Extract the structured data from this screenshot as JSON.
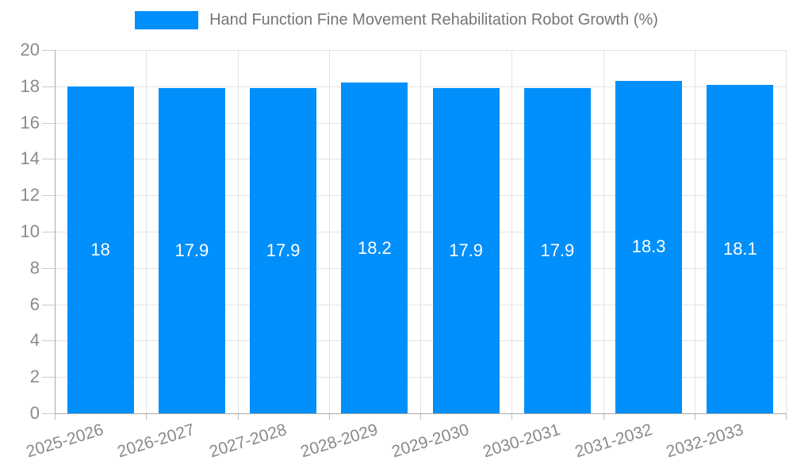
{
  "legend": {
    "label": "Hand Function Fine Movement Rehabilitation Robot Growth (%)"
  },
  "chart_data": {
    "type": "bar",
    "title": "Hand Function Fine Movement Rehabilitation Robot Growth (%)",
    "categories": [
      "2025-2026",
      "2026-2027",
      "2027-2028",
      "2028-2029",
      "2029-2030",
      "2030-2031",
      "2031-2032",
      "2032-2033"
    ],
    "values": [
      18,
      17.9,
      17.9,
      18.2,
      17.9,
      17.9,
      18.3,
      18.1
    ],
    "value_labels": [
      "18",
      "17.9",
      "17.9",
      "18.2",
      "17.9",
      "17.9",
      "18.3",
      "18.1"
    ],
    "xlabel": "",
    "ylabel": "",
    "ylim": [
      0,
      20
    ],
    "ytick_step": 2,
    "ytick_labels": [
      "0",
      "2",
      "4",
      "6",
      "8",
      "10",
      "12",
      "14",
      "16",
      "18",
      "20"
    ],
    "grid": true,
    "legend_position": "top",
    "colors": {
      "bar": "#008ffb",
      "bar_value_text": "#ffffff",
      "gridline": "#e3e3e3",
      "axis_line": "#aaaaaa",
      "axis_text": "#8a8a8a",
      "legend_text": "#757575"
    }
  }
}
